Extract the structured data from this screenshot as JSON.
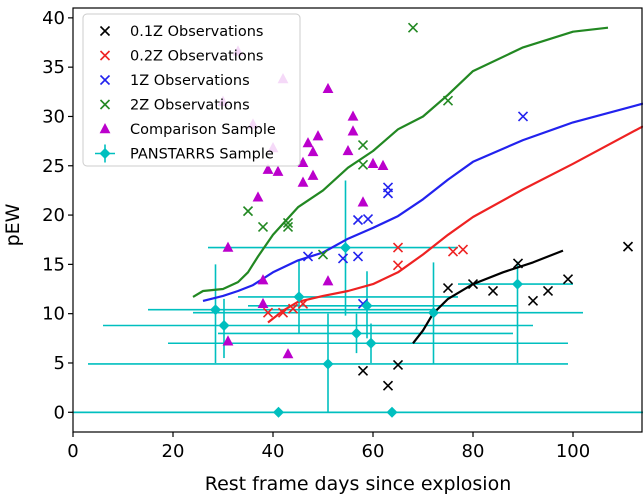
{
  "chart_data": {
    "type": "scatter",
    "title": "",
    "xlabel": "Rest frame days since explosion",
    "ylabel": "pEW",
    "xlim": [
      0,
      114
    ],
    "ylim": [
      -2,
      41
    ],
    "xticks": [
      0,
      20,
      40,
      60,
      80,
      100
    ],
    "yticks": [
      0,
      5,
      10,
      15,
      20,
      25,
      30,
      35,
      40
    ],
    "grid": false,
    "legend_position": "top-left",
    "legend": [
      {
        "label": "0.1Z Observations",
        "marker": "x",
        "color": "#000000"
      },
      {
        "label": "0.2Z Observations",
        "marker": "x",
        "color": "#ee2222"
      },
      {
        "label": "1Z Observations",
        "marker": "x",
        "color": "#2222ee"
      },
      {
        "label": "2Z Observations",
        "marker": "x",
        "color": "#228822"
      },
      {
        "label": "Comparison Sample",
        "marker": "triangle",
        "color": "#bb00cc"
      },
      {
        "label": "PANSTARRS Sample",
        "marker": "diamond-errorbar",
        "color": "#00bfbf"
      }
    ],
    "lines": [
      {
        "color": "#000000",
        "x": [
          68,
          70,
          72,
          75,
          80,
          86,
          92,
          98
        ],
        "y": [
          7,
          8.3,
          10,
          11.5,
          13,
          14.2,
          15.2,
          16.4
        ]
      },
      {
        "color": "#ee2222",
        "x": [
          39,
          42,
          45,
          50,
          55,
          60,
          65,
          70,
          75,
          80,
          90,
          100,
          114
        ],
        "y": [
          9.1,
          10.3,
          11.2,
          11.8,
          12.3,
          13,
          14.2,
          16,
          18,
          19.8,
          22.6,
          25.2,
          29
        ]
      },
      {
        "color": "#2222ee",
        "x": [
          26,
          30,
          33,
          36,
          40,
          45,
          50,
          55,
          60,
          65,
          70,
          75,
          80,
          90,
          100,
          114
        ],
        "y": [
          11.3,
          11.8,
          12.3,
          12.9,
          14.2,
          15.4,
          16.2,
          17.6,
          18.7,
          19.9,
          21.6,
          23.6,
          25.4,
          27.6,
          29.4,
          31.3
        ]
      },
      {
        "color": "#228822",
        "x": [
          24,
          26,
          28,
          30,
          33,
          35,
          37,
          40,
          45,
          50,
          55,
          60,
          65,
          70,
          75,
          80,
          90,
          100,
          107
        ],
        "y": [
          11.7,
          12.3,
          12.4,
          12.5,
          13.2,
          14.2,
          15.8,
          18,
          20.8,
          22.5,
          24.8,
          26.5,
          28.7,
          30,
          32.2,
          34.6,
          37,
          38.6,
          39
        ]
      }
    ],
    "series": [
      {
        "name": "0.1Z Observations",
        "marker": "x",
        "color": "#000000",
        "points": [
          [
            58,
            4.2
          ],
          [
            63,
            2.7
          ],
          [
            65,
            4.8
          ],
          [
            75,
            12.6
          ],
          [
            80,
            13
          ],
          [
            84,
            12.3
          ],
          [
            89,
            15.1
          ],
          [
            92,
            11.3
          ],
          [
            95,
            12.3
          ],
          [
            99,
            13.5
          ],
          [
            111,
            16.8
          ]
        ]
      },
      {
        "name": "0.2Z Observations",
        "marker": "x",
        "color": "#ee2222",
        "points": [
          [
            39,
            10.1
          ],
          [
            42,
            10.1
          ],
          [
            44,
            10.5
          ],
          [
            46,
            11
          ],
          [
            65,
            14.9
          ],
          [
            65,
            16.7
          ],
          [
            76,
            16.3
          ],
          [
            78,
            16.5
          ]
        ]
      },
      {
        "name": "1Z Observations",
        "marker": "x",
        "color": "#2222ee",
        "points": [
          [
            47,
            15.8
          ],
          [
            54,
            15.6
          ],
          [
            57,
            15.8
          ],
          [
            57,
            19.5
          ],
          [
            59,
            19.6
          ],
          [
            58,
            11
          ],
          [
            63,
            22.8
          ],
          [
            63,
            22.2
          ],
          [
            90,
            30
          ]
        ]
      },
      {
        "name": "2Z Observations",
        "marker": "x",
        "color": "#228822",
        "points": [
          [
            35,
            20.4
          ],
          [
            38,
            18.8
          ],
          [
            43,
            18.8
          ],
          [
            43,
            19.2
          ],
          [
            50,
            16
          ],
          [
            58,
            25.1
          ],
          [
            58,
            27.1
          ],
          [
            68,
            39
          ],
          [
            75,
            31.6
          ]
        ]
      },
      {
        "name": "Comparison Sample",
        "marker": "triangle",
        "color": "#bb00cc",
        "points": [
          [
            30,
            31.5
          ],
          [
            31,
            16.7
          ],
          [
            31,
            7.2
          ],
          [
            33,
            36.6
          ],
          [
            36,
            29.2
          ],
          [
            37,
            21.8
          ],
          [
            38,
            13.4
          ],
          [
            38,
            11
          ],
          [
            39,
            24.6
          ],
          [
            40,
            26.8
          ],
          [
            41,
            24.4
          ],
          [
            42,
            33.8
          ],
          [
            43,
            5.9
          ],
          [
            46,
            23.3
          ],
          [
            46,
            25.3
          ],
          [
            47,
            27.3
          ],
          [
            48,
            24
          ],
          [
            48,
            26.4
          ],
          [
            49,
            28
          ],
          [
            51,
            32.8
          ],
          [
            51,
            13.3
          ],
          [
            55,
            26.5
          ],
          [
            56,
            28.5
          ],
          [
            56,
            30
          ],
          [
            58,
            21.3
          ],
          [
            60,
            25.2
          ],
          [
            62,
            25
          ]
        ]
      }
    ],
    "panstarrs": [
      {
        "x": 28.5,
        "y": 10.4,
        "xerr": [
          15,
          73
        ],
        "yerr": [
          5,
          15
        ]
      },
      {
        "x": 30.2,
        "y": 8.8,
        "xerr": [
          6,
          92
        ],
        "yerr": [
          5.5,
          11.5
        ]
      },
      {
        "x": 45.2,
        "y": 11.7,
        "xerr": [
          33,
          77
        ],
        "yerr": [
          8,
          15.5
        ]
      },
      {
        "x": 51,
        "y": 4.9,
        "xerr": [
          3,
          99
        ],
        "yerr": [
          0,
          10
        ]
      },
      {
        "x": 54.5,
        "y": 16.7,
        "xerr": [
          27,
          77
        ],
        "yerr": [
          9.8,
          23.5
        ]
      },
      {
        "x": 56.7,
        "y": 8,
        "xerr": [
          29,
          88
        ],
        "yerr": [
          6,
          10
        ]
      },
      {
        "x": 58.8,
        "y": 10.8,
        "xerr": [
          35,
          89
        ],
        "yerr": [
          7.5,
          14.3
        ]
      },
      {
        "x": 59.6,
        "y": 7,
        "xerr": [
          19,
          99
        ],
        "yerr": [
          5,
          9
        ]
      },
      {
        "x": 72.1,
        "y": 10.1,
        "xerr": [
          24,
          102
        ],
        "yerr": [
          4.9,
          15.2
        ]
      },
      {
        "x": 88.9,
        "y": 13,
        "xerr": [
          77,
          100
        ],
        "yerr": [
          5,
          15.3
        ]
      },
      {
        "x": 41.1,
        "y": 0,
        "xerr": [
          0,
          114
        ],
        "yerr": null
      },
      {
        "x": 63.8,
        "y": 0,
        "xerr": [
          0,
          114
        ],
        "yerr": null
      }
    ]
  }
}
